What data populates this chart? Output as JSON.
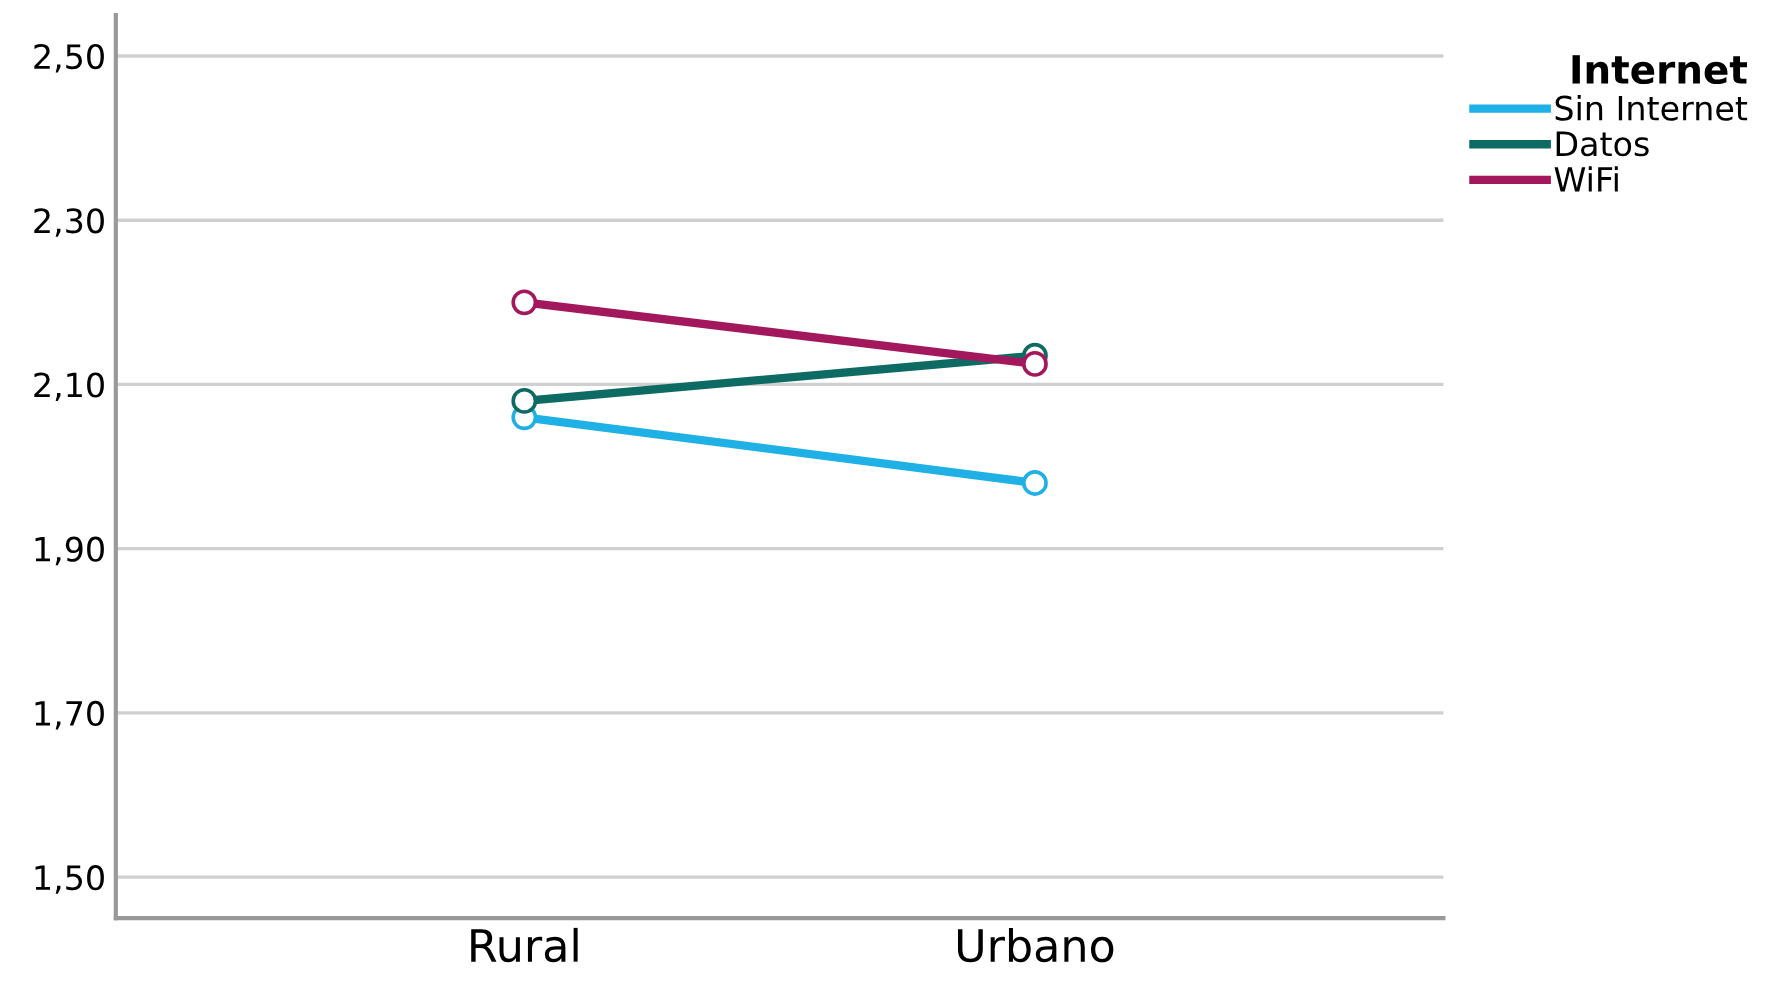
{
  "chart_data": {
    "type": "line",
    "legend_title": "Internet",
    "categories": [
      "Rural",
      "Urbano"
    ],
    "series": [
      {
        "name": "Sin Internet",
        "color": "#1fb0e6",
        "values": [
          2.06,
          1.98
        ]
      },
      {
        "name": "Datos",
        "color": "#0e6b64",
        "values": [
          2.08,
          2.135
        ]
      },
      {
        "name": "WiFi",
        "color": "#a3185c",
        "values": [
          2.2,
          2.125
        ]
      }
    ],
    "ylim": [
      1.45,
      2.55
    ],
    "yticks": [
      {
        "value": 1.5,
        "label": "1,50"
      },
      {
        "value": 1.7,
        "label": "1,70"
      },
      {
        "value": 1.9,
        "label": "1,90"
      },
      {
        "value": 2.1,
        "label": "2,10"
      },
      {
        "value": 2.3,
        "label": "2,30"
      },
      {
        "value": 2.5,
        "label": "2,50"
      }
    ],
    "grid": "y",
    "legend": "top right",
    "marker": "circle",
    "line_style": "solid"
  }
}
